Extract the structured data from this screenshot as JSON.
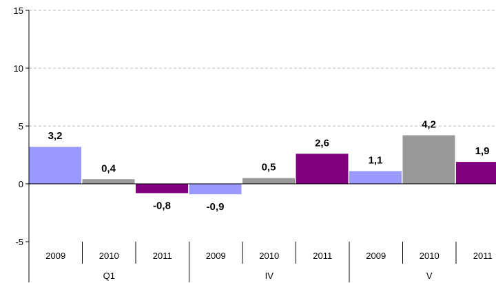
{
  "chart_data": {
    "type": "bar",
    "groups": [
      {
        "name": "Q1",
        "categories": [
          "2009",
          "2010",
          "2011"
        ],
        "values": [
          3.2,
          0.4,
          -0.8
        ],
        "labels": [
          "3,2",
          "0,4",
          "-0,8"
        ]
      },
      {
        "name": "IV",
        "categories": [
          "2009",
          "2010",
          "2011"
        ],
        "values": [
          -0.9,
          0.5,
          2.6
        ],
        "labels": [
          "-0,9",
          "0,5",
          "2,6"
        ]
      },
      {
        "name": "V",
        "categories": [
          "2009",
          "2010",
          "2011"
        ],
        "values": [
          1.1,
          4.2,
          1.9
        ],
        "labels": [
          "1,1",
          "4,2",
          "1,9"
        ]
      }
    ],
    "year_colors": {
      "2009": "#9999ff",
      "2010": "#999999",
      "2011": "#800080"
    },
    "ylim": [
      -5,
      15
    ],
    "yticks": [
      -5,
      0,
      5,
      10,
      15
    ],
    "ytick_labels": [
      "-5",
      "0",
      "5",
      "10",
      "15"
    ],
    "grid": true,
    "title": "",
    "xlabel": "",
    "ylabel": ""
  }
}
